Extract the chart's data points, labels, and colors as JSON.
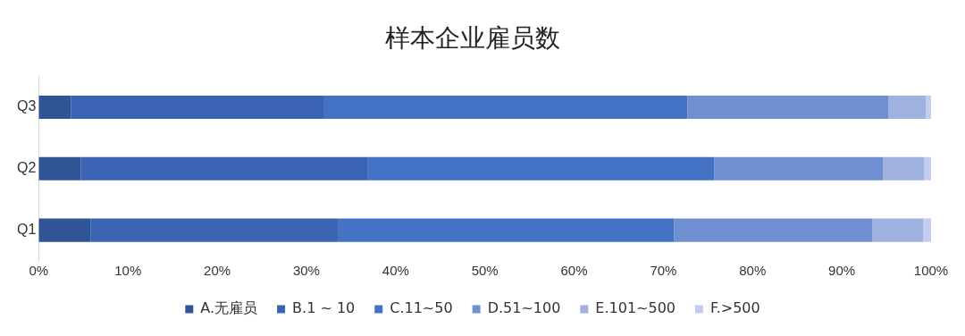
{
  "chart_data": {
    "type": "bar",
    "title": "样本企业雇员数",
    "orientation": "horizontal",
    "stacked": true,
    "categories": [
      "Q3",
      "Q2",
      "Q1"
    ],
    "series": [
      {
        "name": "A.无雇员",
        "color": "#2f5597",
        "values": [
          3.6,
          4.7,
          5.8
        ]
      },
      {
        "name": "B.1 ~ 10",
        "color": "#3a63b3",
        "values": [
          28.4,
          32.2,
          27.8
        ]
      },
      {
        "name": "C.11~50",
        "color": "#4472c4",
        "values": [
          40.7,
          38.8,
          37.6
        ]
      },
      {
        "name": "D.51~100",
        "color": "#6f8fd1",
        "values": [
          22.5,
          18.9,
          22.2
        ]
      },
      {
        "name": "E.101~500",
        "color": "#9fb1de",
        "values": [
          4.2,
          4.6,
          5.7
        ]
      },
      {
        "name": "F.>500",
        "color": "#c3cdee",
        "values": [
          0.6,
          0.8,
          0.9
        ]
      }
    ],
    "xlim": [
      0,
      100
    ],
    "xticks": [
      {
        "value": 0,
        "label": "0%"
      },
      {
        "value": 10,
        "label": "10%"
      },
      {
        "value": 20,
        "label": "20%"
      },
      {
        "value": 30,
        "label": "30%"
      },
      {
        "value": 40,
        "label": "40%"
      },
      {
        "value": 50,
        "label": "50%"
      },
      {
        "value": 60,
        "label": "60%"
      },
      {
        "value": 70,
        "label": "70%"
      },
      {
        "value": 80,
        "label": "80%"
      },
      {
        "value": 90,
        "label": "90%"
      },
      {
        "value": 100,
        "label": "100%"
      }
    ],
    "grid": false,
    "legend": "bottom"
  }
}
